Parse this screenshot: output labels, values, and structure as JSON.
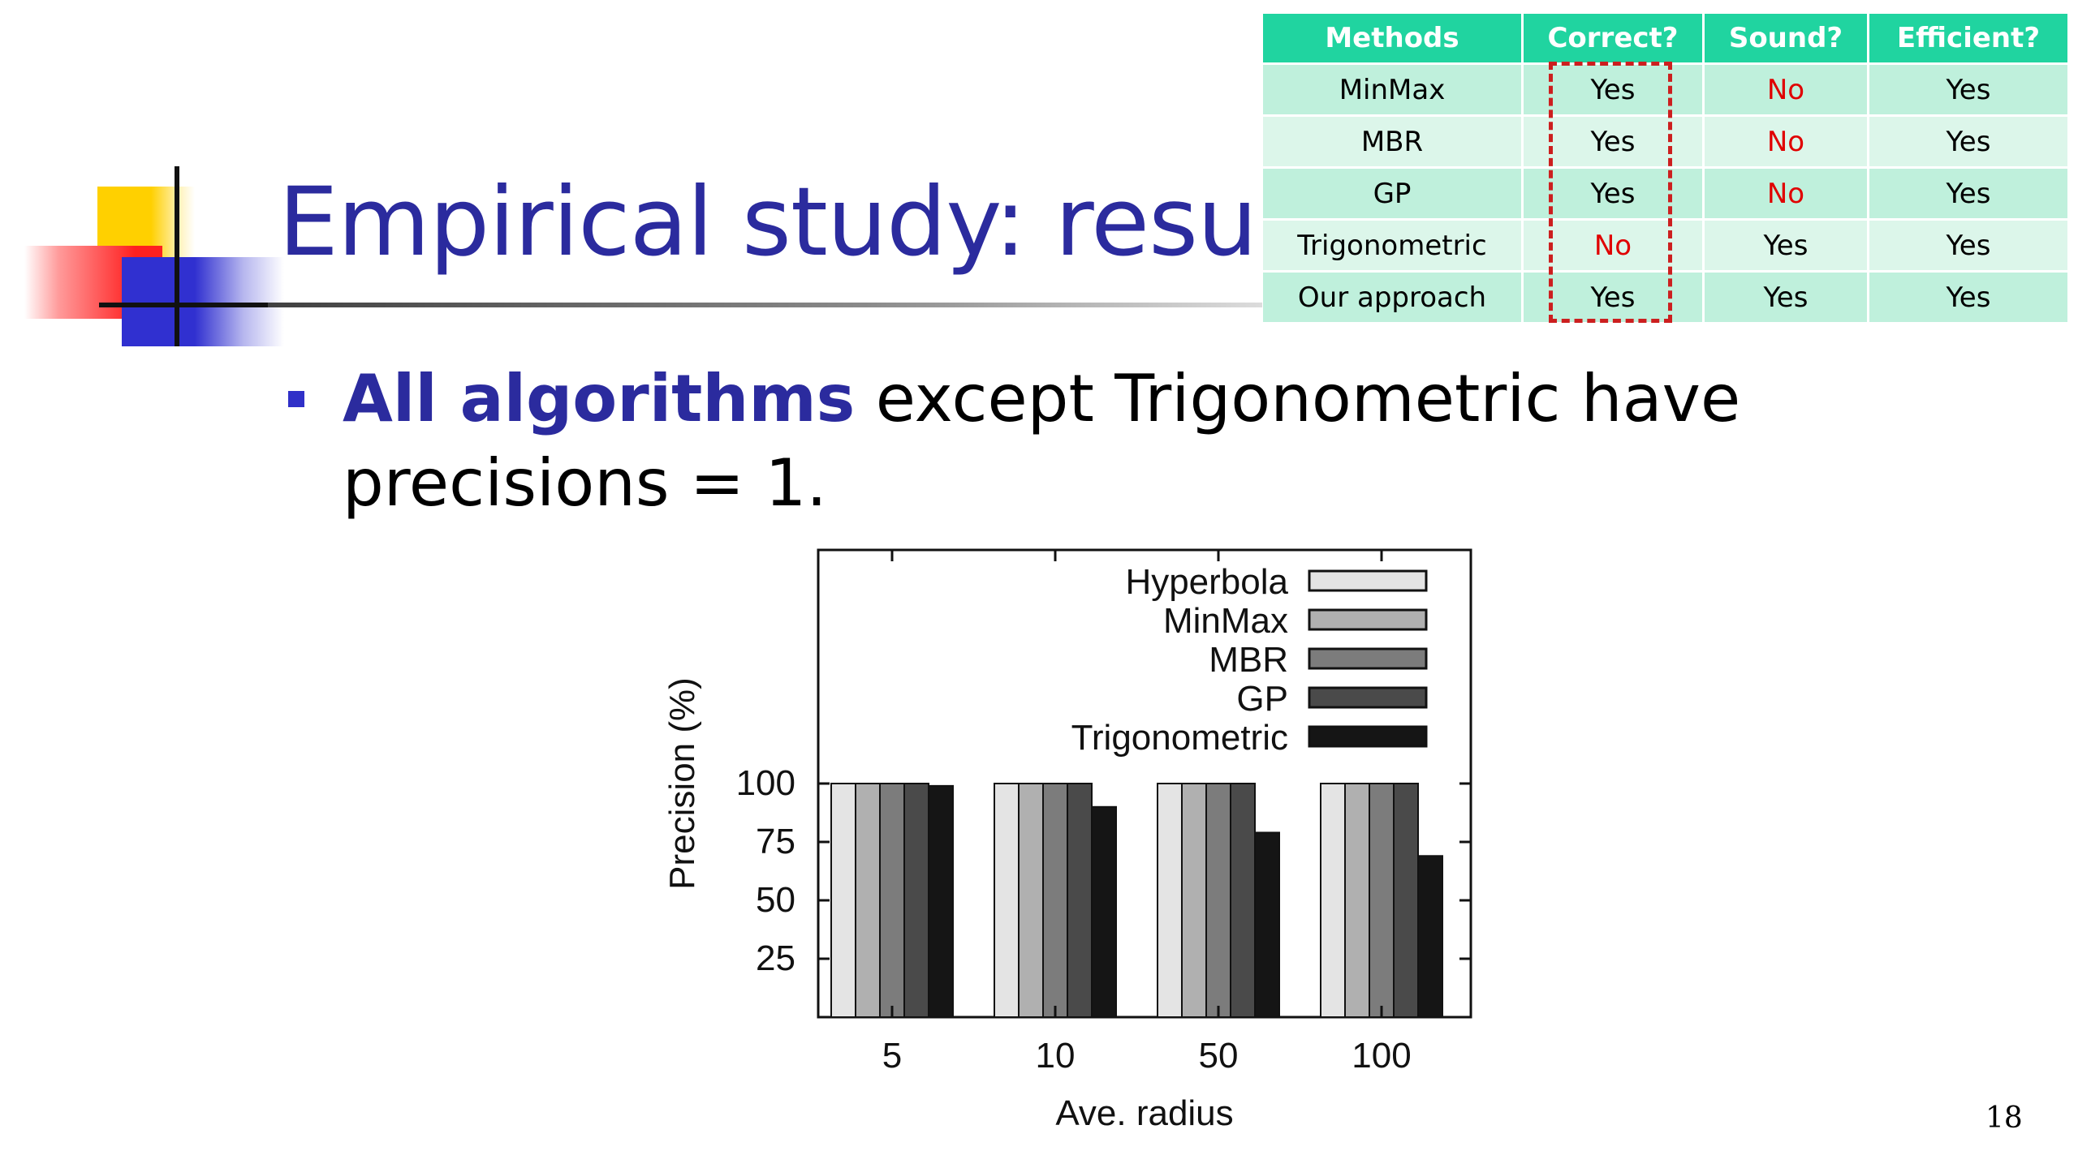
{
  "slide": {
    "title": "Empirical study: results",
    "bullet_strong": "All algorithms",
    "bullet_rest": " except Trigonometric have precisions = 1.",
    "page_number": "18"
  },
  "comparison_table": {
    "headers": [
      "Methods",
      "Correct?",
      "Sound?",
      "Efficient?"
    ],
    "rows": [
      [
        "MinMax",
        "Yes",
        "No",
        "Yes"
      ],
      [
        "MBR",
        "Yes",
        "No",
        "Yes"
      ],
      [
        "GP",
        "Yes",
        "No",
        "Yes"
      ],
      [
        "Trigonometric",
        "No",
        "Yes",
        "Yes"
      ],
      [
        "Our approach",
        "Yes",
        "Yes",
        "Yes"
      ]
    ],
    "colors": {
      "header_bg": "#20d4a0",
      "no_text": "#e00000",
      "highlight_border": "#cc1f1f"
    }
  },
  "chart_data": {
    "type": "bar",
    "xlabel": "Ave. radius",
    "ylabel": "Precision (%)",
    "categories": [
      "5",
      "10",
      "50",
      "100"
    ],
    "ylim": [
      0,
      200
    ],
    "yticks": [
      25,
      50,
      75,
      100
    ],
    "legend_position": "top-right",
    "series": [
      {
        "name": "Hyperbola",
        "values": [
          100,
          100,
          100,
          100
        ],
        "color": "#e4e4e4"
      },
      {
        "name": "MinMax",
        "values": [
          100,
          100,
          100,
          100
        ],
        "color": "#b0b0b0"
      },
      {
        "name": "MBR",
        "values": [
          100,
          100,
          100,
          100
        ],
        "color": "#7c7c7c"
      },
      {
        "name": "GP",
        "values": [
          100,
          100,
          100,
          100
        ],
        "color": "#4a4a4a"
      },
      {
        "name": "Trigonometric",
        "values": [
          99,
          90,
          79,
          69
        ],
        "color": "#151515"
      }
    ]
  }
}
